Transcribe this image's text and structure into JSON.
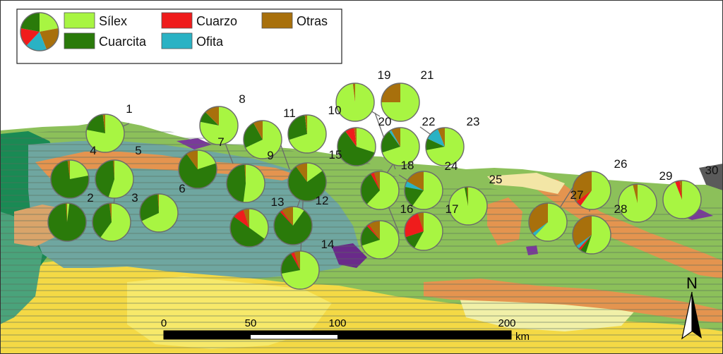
{
  "legend": {
    "items": [
      {
        "key": "silex",
        "label": "Sílex",
        "color": "#a8f542"
      },
      {
        "key": "cuarzo",
        "label": "Cuarzo",
        "color": "#ef1c1c"
      },
      {
        "key": "otras",
        "label": "Otras",
        "color": "#a8700c"
      },
      {
        "key": "cuarcita",
        "label": "Cuarcita",
        "color": "#2a7a0a"
      },
      {
        "key": "ofita",
        "label": "Ofita",
        "color": "#2ab2c4"
      }
    ],
    "sample_pie": [
      0.22,
      0.22,
      0.18,
      0.16,
      0.22
    ]
  },
  "scalebar": {
    "ticks": [
      "0",
      "50",
      "100",
      "200"
    ],
    "unit": "km"
  },
  "north_label": "N",
  "sites": [
    {
      "id": "1",
      "silex": 0.78,
      "cuarcita": 0.2,
      "cuarzo": 0.0,
      "ofita": 0.0,
      "otras": 0.02
    },
    {
      "id": "2",
      "silex": 0.02,
      "cuarcita": 0.97,
      "cuarzo": 0.0,
      "ofita": 0.0,
      "otras": 0.01
    },
    {
      "id": "3",
      "silex": 0.6,
      "cuarcita": 0.38,
      "cuarzo": 0.0,
      "ofita": 0.0,
      "otras": 0.02
    },
    {
      "id": "4",
      "silex": 0.22,
      "cuarcita": 0.76,
      "cuarzo": 0.0,
      "ofita": 0.0,
      "otras": 0.02
    },
    {
      "id": "5",
      "silex": 0.55,
      "cuarcita": 0.44,
      "cuarzo": 0.0,
      "ofita": 0.0,
      "otras": 0.01
    },
    {
      "id": "6",
      "silex": 0.68,
      "cuarcita": 0.31,
      "cuarzo": 0.0,
      "ofita": 0.0,
      "otras": 0.01
    },
    {
      "id": "7",
      "silex": 0.2,
      "cuarcita": 0.7,
      "cuarzo": 0.0,
      "ofita": 0.0,
      "otras": 0.1
    },
    {
      "id": "8",
      "silex": 0.25,
      "cuarcita": 0.03,
      "cuarzo": 0.0,
      "ofita": 0.0,
      "otras": 0.04
    },
    {
      "id": "9",
      "silex": 0.68,
      "cuarcita": 0.24,
      "cuarzo": 0.0,
      "ofita": 0.0,
      "otras": 0.08
    },
    {
      "id": "10",
      "silex": 0.7,
      "cuarcita": 0.28,
      "cuarzo": 0.0,
      "ofita": 0.0,
      "otras": 0.02
    },
    {
      "id": "11",
      "silex": 0.52,
      "cuarcita": 0.47,
      "cuarzo": 0.0,
      "ofita": 0.0,
      "otras": 0.01
    },
    {
      "id": "12",
      "silex": 0.15,
      "cuarcita": 0.75,
      "cuarzo": 0.0,
      "ofita": 0.0,
      "otras": 0.1
    },
    {
      "id": "13",
      "silex": 0.35,
      "cuarcita": 0.5,
      "cuarzo": 0.1,
      "ofita": 0.0,
      "otras": 0.05
    },
    {
      "id": "14",
      "silex": 0.1,
      "cuarcita": 0.78,
      "cuarzo": 0.02,
      "ofita": 0.0,
      "otras": 0.1
    },
    {
      "id": "15",
      "silex": 0.72,
      "cuarcita": 0.2,
      "cuarzo": 0.03,
      "ofita": 0.0,
      "otras": 0.05
    },
    {
      "id": "16",
      "silex": 0.3,
      "cuarcita": 0.6,
      "cuarzo": 0.08,
      "ofita": 0.0,
      "otras": 0.02
    },
    {
      "id": "17",
      "silex": 0.58,
      "cuarcita": 0.12,
      "cuarzo": 0.25,
      "ofita": 0.0,
      "otras": 0.05
    },
    {
      "id": "18",
      "silex": 0.62,
      "cuarcita": 0.3,
      "cuarzo": 0.03,
      "ofita": 0.0,
      "otras": 0.05
    },
    {
      "id": "19",
      "silex": 0.98,
      "cuarcita": 0.0,
      "cuarzo": 0.0,
      "ofita": 0.0,
      "otras": 0.02
    },
    {
      "id": "20",
      "silex": 0.7,
      "cuarcita": 0.18,
      "cuarzo": 0.02,
      "ofita": 0.0,
      "otras": 0.1
    },
    {
      "id": "21",
      "silex": 0.75,
      "cuarcita": 0.0,
      "cuarzo": 0.0,
      "ofita": 0.0,
      "otras": 0.25
    },
    {
      "id": "22",
      "silex": 0.7,
      "cuarcita": 0.2,
      "cuarzo": 0.0,
      "ofita": 0.02,
      "otras": 0.08
    },
    {
      "id": "23",
      "silex": 0.72,
      "cuarcita": 0.1,
      "cuarzo": 0.0,
      "ofita": 0.12,
      "otras": 0.06
    },
    {
      "id": "24",
      "silex": 0.6,
      "cuarcita": 0.18,
      "cuarzo": 0.0,
      "ofita": 0.05,
      "otras": 0.17
    },
    {
      "id": "25",
      "silex": 0.97,
      "cuarcita": 0.02,
      "cuarzo": 0.0,
      "ofita": 0.0,
      "otras": 0.01
    },
    {
      "id": "26",
      "silex": 0.6,
      "cuarcita": 0.0,
      "cuarzo": 0.05,
      "ofita": 0.0,
      "otras": 0.35
    },
    {
      "id": "27",
      "silex": 0.62,
      "cuarcita": 0.0,
      "cuarzo": 0.0,
      "ofita": 0.03,
      "otras": 0.35
    },
    {
      "id": "28",
      "silex": 0.55,
      "cuarcita": 0.05,
      "cuarzo": 0.02,
      "ofita": 0.03,
      "otras": 0.35
    },
    {
      "id": "29",
      "silex": 0.96,
      "cuarcita": 0.0,
      "cuarzo": 0.0,
      "ofita": 0.0,
      "otras": 0.04
    },
    {
      "id": "30",
      "silex": 0.94,
      "cuarcita": 0.0,
      "cuarzo": 0.04,
      "ofita": 0.0,
      "otras": 0.02
    }
  ]
}
